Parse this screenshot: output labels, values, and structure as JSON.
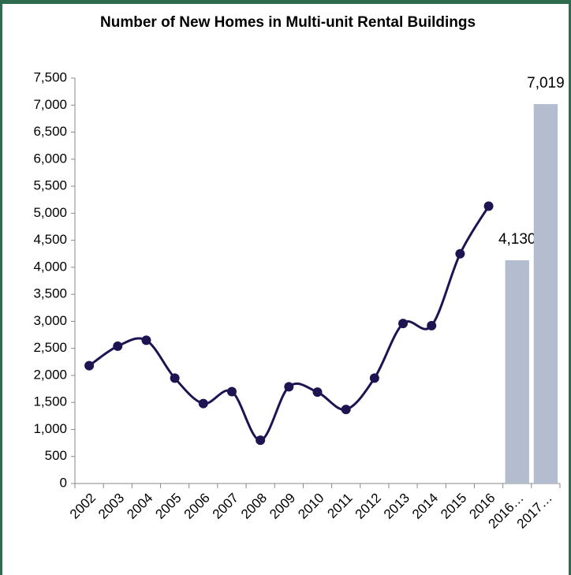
{
  "chart_data": {
    "type": "line",
    "title": "Number of New Homes in Multi-unit Rental Buildings",
    "categories": [
      "2002",
      "2003",
      "2004",
      "2005",
      "2006",
      "2007",
      "2008",
      "2009",
      "2010",
      "2011",
      "2012",
      "2013",
      "2014",
      "2015",
      "2016",
      "2016…",
      "2017…"
    ],
    "series": [
      {
        "type": "line",
        "color": "#1f1452",
        "values": [
          2180,
          2540,
          2650,
          1950,
          1480,
          1700,
          800,
          1790,
          1690,
          1370,
          1950,
          2960,
          2920,
          4250,
          5130,
          null,
          null
        ]
      },
      {
        "type": "bar",
        "color": "#b4bdd0",
        "values": [
          null,
          null,
          null,
          null,
          null,
          null,
          null,
          null,
          null,
          null,
          null,
          null,
          null,
          null,
          null,
          4130,
          7019
        ],
        "value_labels": [
          null,
          null,
          null,
          null,
          null,
          null,
          null,
          null,
          null,
          null,
          null,
          null,
          null,
          null,
          null,
          "4,130",
          "7,019"
        ]
      }
    ],
    "ylim": [
      0,
      7500
    ],
    "yticks": [
      0,
      500,
      {
        "value": 1000,
        "label": "1,000"
      },
      {
        "value": 1500,
        "label": "1,500"
      },
      {
        "value": 2000,
        "label": "2,000"
      },
      {
        "value": 2500,
        "label": "2,500"
      },
      {
        "value": 3000,
        "label": "3,000"
      },
      {
        "value": 3500,
        "label": "3,500"
      },
      {
        "value": 4000,
        "label": "4,000"
      },
      {
        "value": 4500,
        "label": "4,500"
      },
      {
        "value": 5000,
        "label": "5,000"
      },
      {
        "value": 5500,
        "label": "5,500"
      },
      {
        "value": 6000,
        "label": "6,000"
      },
      {
        "value": 6500,
        "label": "6,500"
      },
      {
        "value": 7000,
        "label": "7,000"
      },
      {
        "value": 7500,
        "label": "7,500"
      }
    ],
    "smooth": true,
    "grid": false
  }
}
